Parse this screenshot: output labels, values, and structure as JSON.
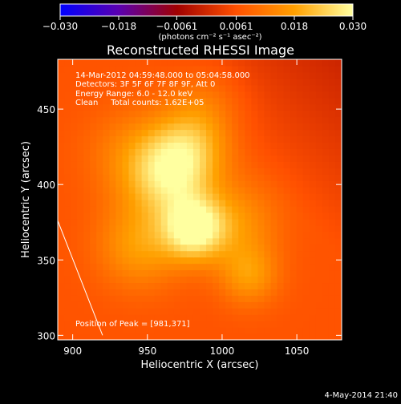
{
  "chart_data": {
    "type": "heatmap",
    "title": "Reconstructed RHESSI Image",
    "xlabel": "Heliocentric X (arcsec)",
    "ylabel": "Heliocentric Y (arcsec)",
    "xlim": [
      890,
      1080
    ],
    "ylim": [
      297,
      483
    ],
    "x_ticks": [
      900,
      950,
      1000,
      1050
    ],
    "x_tick_labels": [
      "900",
      "950",
      "1000",
      "1050"
    ],
    "y_ticks": [
      300,
      350,
      400,
      450
    ],
    "y_tick_labels": [
      "300",
      "350",
      "400",
      "450"
    ],
    "colorbar": {
      "min": -0.03,
      "max": 0.03,
      "ticks": [
        -0.03,
        -0.018,
        -0.0061,
        0.0061,
        0.018,
        0.03
      ],
      "tick_labels": [
        "−0.030",
        "−0.018",
        "−0.0061",
        "0.0061",
        "0.018",
        "0.030"
      ],
      "unit": "(photons cm⁻² s⁻¹ asec⁻²)",
      "colors": [
        "#0000ff",
        "#5a00b0",
        "#a00000",
        "#ff5000",
        "#ffa000",
        "#ffffa0"
      ]
    },
    "annotations": [
      "14-Mar-2012 04:59:48.000 to 05:04:58.000",
      "Detectors: 3F 5F 6F 7F 8F 9F, Att 0",
      "Energy Range: 6.0 - 12.0 keV",
      "Clean     Total counts: 1.62E+05"
    ],
    "peak_label": "Position of Peak = [981,371]",
    "peak": {
      "x": 981,
      "y": 371
    },
    "background_value": 0.0065,
    "sources": [
      {
        "x": 981,
        "y": 371,
        "peak": 0.023,
        "sigma": 14
      },
      {
        "x": 965,
        "y": 405,
        "peak": 0.016,
        "sigma": 19
      },
      {
        "x": 978,
        "y": 425,
        "peak": 0.012,
        "sigma": 18
      },
      {
        "x": 945,
        "y": 360,
        "peak": 0.011,
        "sigma": 20
      },
      {
        "x": 1018,
        "y": 340,
        "peak": 0.01,
        "sigma": 14
      },
      {
        "x": 1010,
        "y": 375,
        "peak": 0.009,
        "sigma": 20
      },
      {
        "x": 940,
        "y": 420,
        "peak": 0.007,
        "sigma": 22
      },
      {
        "x": 990,
        "y": 455,
        "peak": 0.005,
        "sigma": 18
      }
    ],
    "limb_line": [
      [
        890,
        376
      ],
      [
        920,
        300
      ]
    ],
    "grid": false
  },
  "footer": {
    "date": "4-May-2014 21:40"
  }
}
